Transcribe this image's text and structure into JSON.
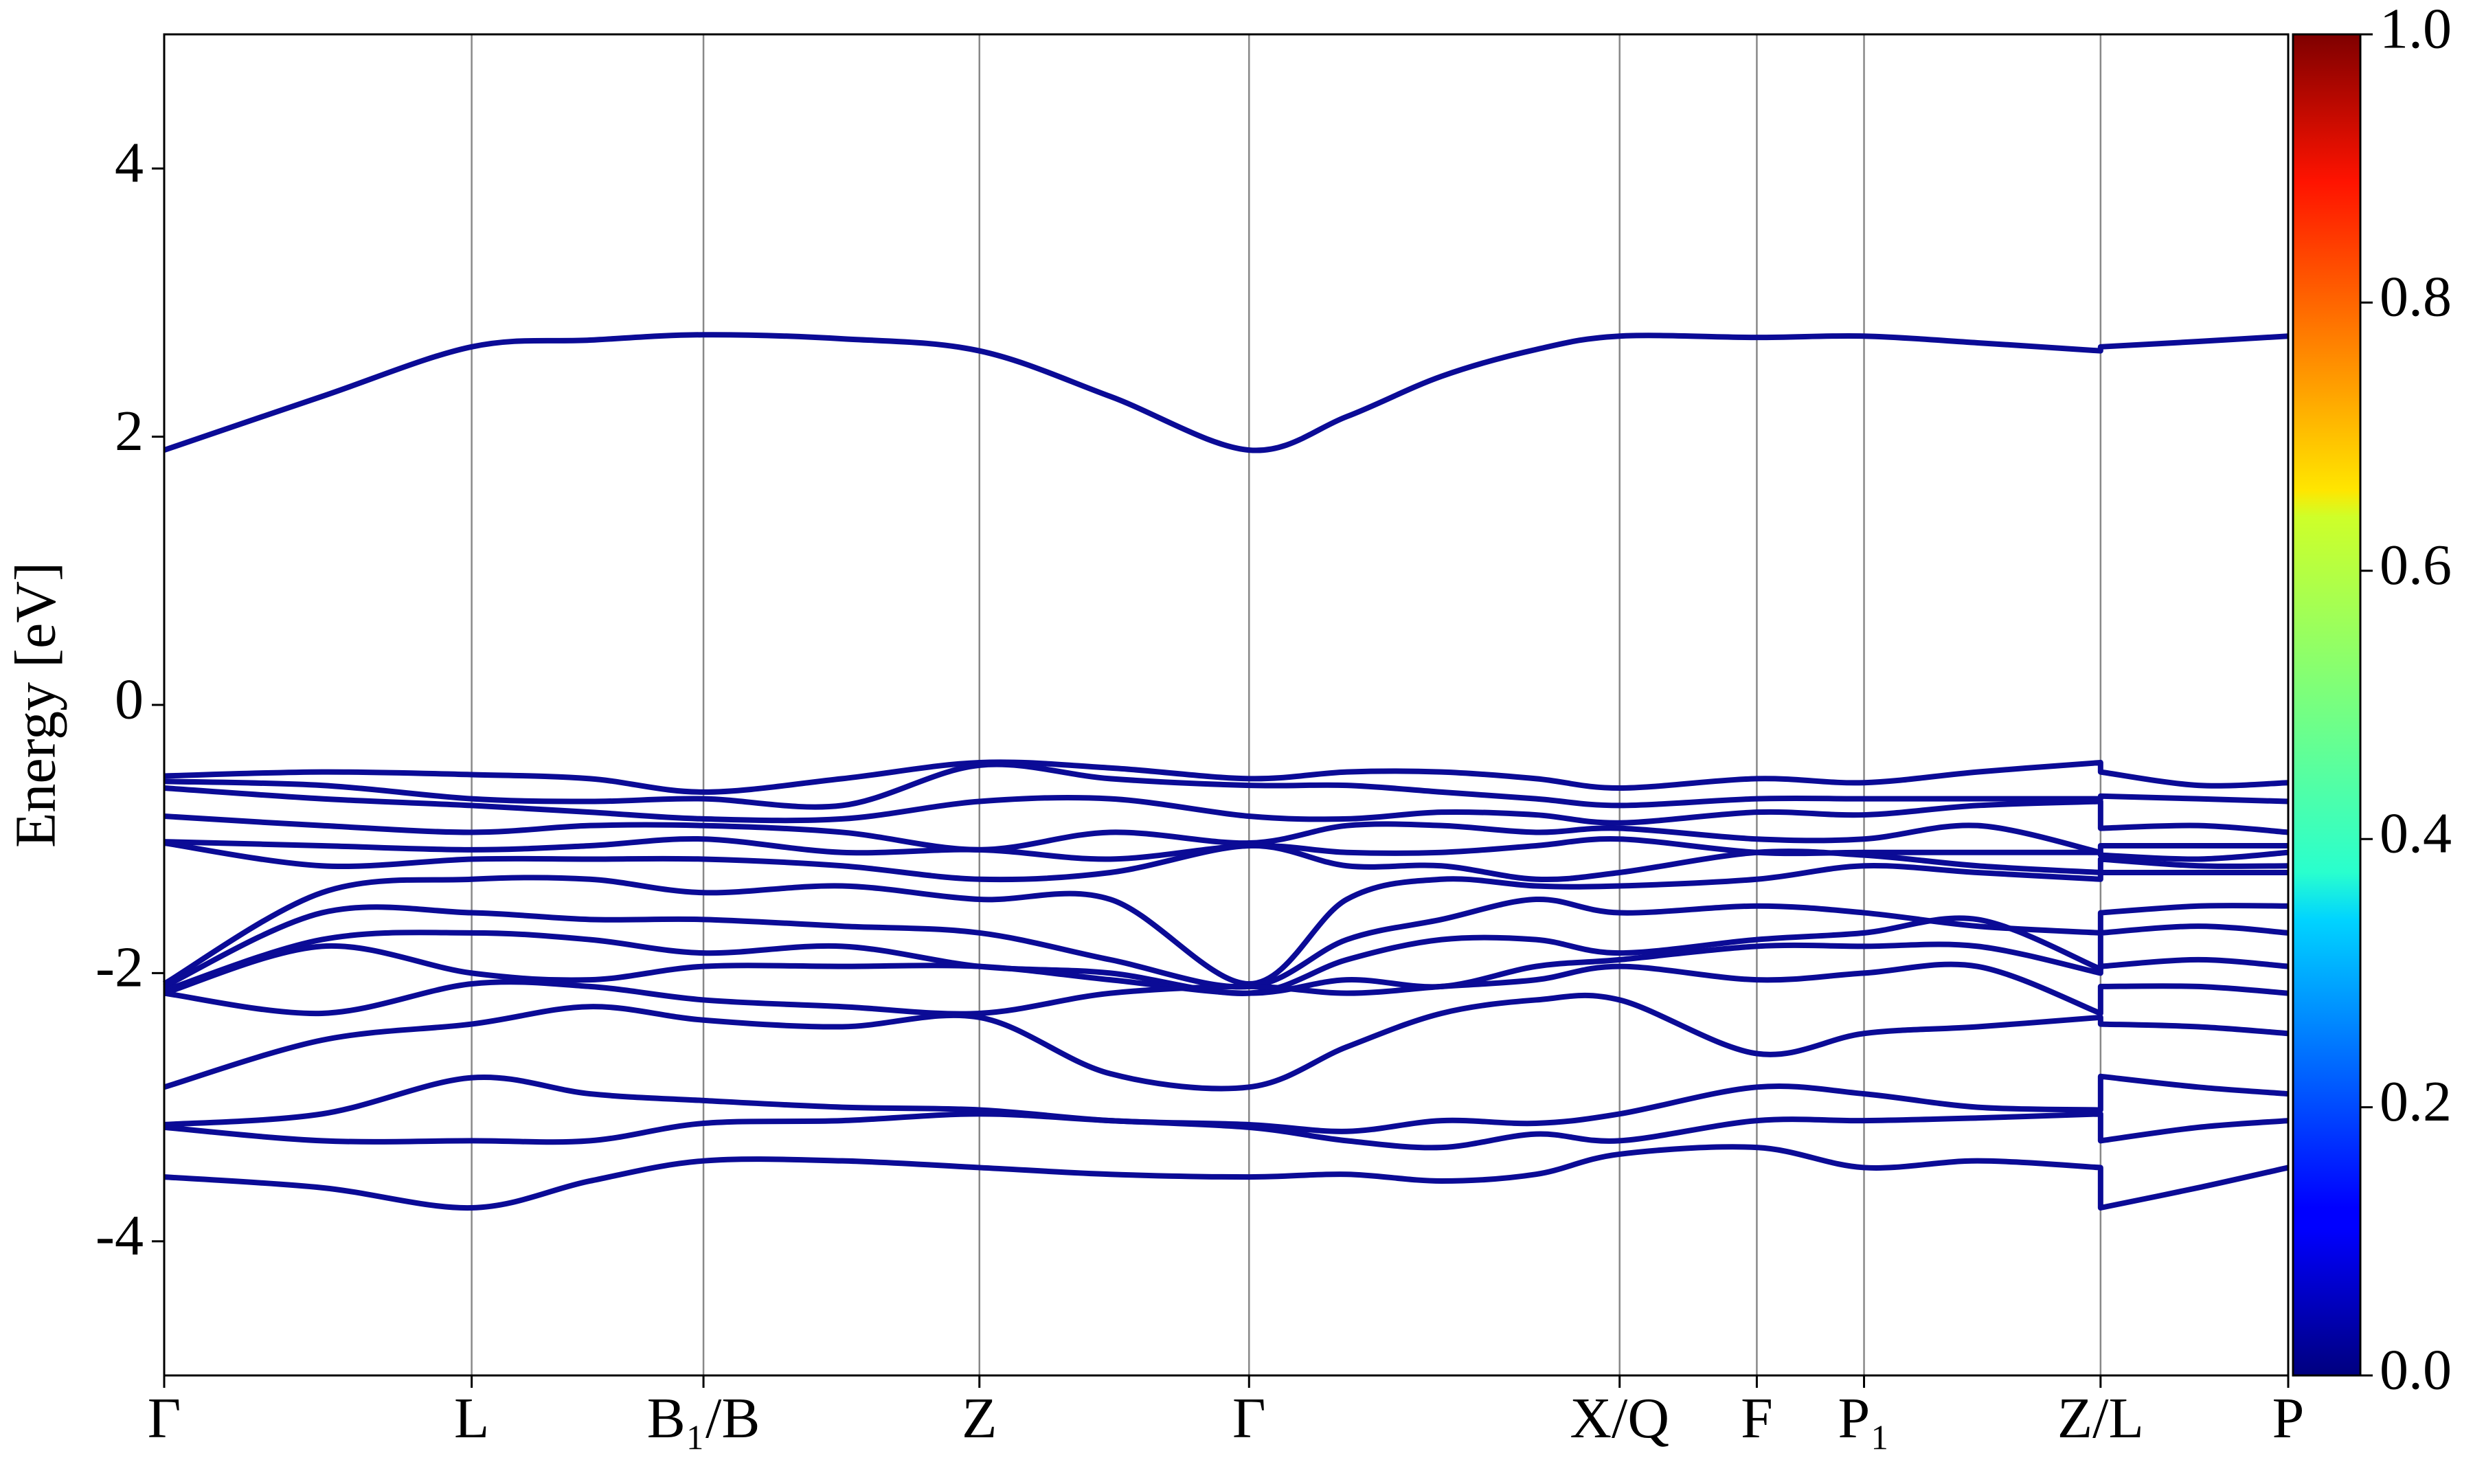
{
  "chart_data": {
    "type": "line",
    "ylabel": "Energy [eV]",
    "ylim": [
      -5,
      5
    ],
    "yticks": [
      -4,
      -2,
      0,
      2,
      4
    ],
    "xlim": [
      0,
      1.347
    ],
    "xticks": [
      {
        "value": 0,
        "label": "Γ"
      },
      {
        "value": 0.195,
        "label": "L"
      },
      {
        "value": 0.342,
        "label": "B₁/B"
      },
      {
        "value": 0.517,
        "label": "Z"
      },
      {
        "value": 0.688,
        "label": "Γ"
      },
      {
        "value": 0.923,
        "label": "X/Q"
      },
      {
        "value": 1.01,
        "label": "F"
      },
      {
        "value": 1.078,
        "label": "P₁"
      },
      {
        "value": 1.228,
        "label": "Z/L"
      },
      {
        "value": 1.347,
        "label": "P"
      }
    ],
    "grid": "x",
    "color": "#0b0b96",
    "x": [
      0,
      0.1,
      0.195,
      0.27,
      0.342,
      0.43,
      0.517,
      0.6,
      0.688,
      0.75,
      0.81,
      0.87,
      0.923,
      1.01,
      1.078,
      1.15,
      1.228,
      1.228,
      1.29,
      1.347
    ],
    "series": [
      {
        "values": [
          1.9,
          2.3,
          2.67,
          2.72,
          2.76,
          2.73,
          2.64,
          2.3,
          1.9,
          2.15,
          2.45,
          2.65,
          2.75,
          2.74,
          2.75,
          2.7,
          2.64,
          2.67,
          2.71,
          2.75
        ]
      },
      {
        "values": [
          -0.53,
          -0.5,
          -0.52,
          -0.55,
          -0.65,
          -0.55,
          -0.43,
          -0.47,
          -0.55,
          -0.5,
          -0.5,
          -0.55,
          -0.62,
          -0.55,
          -0.58,
          -0.5,
          -0.43,
          -0.5,
          -0.6,
          -0.58
        ]
      },
      {
        "values": [
          -0.57,
          -0.6,
          -0.7,
          -0.72,
          -0.7,
          -0.75,
          -0.45,
          -0.55,
          -0.6,
          -0.6,
          -0.65,
          -0.7,
          -0.75,
          -0.7,
          -0.7,
          -0.7,
          -0.7,
          -0.68,
          -0.7,
          -0.72
        ]
      },
      {
        "values": [
          -0.62,
          -0.7,
          -0.75,
          -0.8,
          -0.85,
          -0.85,
          -0.72,
          -0.7,
          -0.83,
          -0.85,
          -0.8,
          -0.82,
          -0.88,
          -0.8,
          -0.82,
          -0.75,
          -0.72,
          -0.92,
          -0.9,
          -0.95
        ]
      },
      {
        "values": [
          -0.83,
          -0.9,
          -0.95,
          -0.9,
          -0.9,
          -0.95,
          -1.08,
          -0.95,
          -1.03,
          -0.9,
          -0.9,
          -0.95,
          -0.92,
          -1.0,
          -1.0,
          -0.9,
          -1.1,
          -1.05,
          -1.05,
          -1.05
        ]
      },
      {
        "values": [
          -1.02,
          -1.05,
          -1.08,
          -1.05,
          -1.0,
          -1.1,
          -1.08,
          -1.15,
          -1.05,
          -1.1,
          -1.1,
          -1.05,
          -1.0,
          -1.1,
          -1.1,
          -1.1,
          -1.1,
          -1.12,
          -1.15,
          -1.1
        ]
      },
      {
        "values": [
          -1.03,
          -1.2,
          -1.15,
          -1.15,
          -1.15,
          -1.2,
          -1.3,
          -1.25,
          -1.05,
          -1.2,
          -1.2,
          -1.3,
          -1.25,
          -1.1,
          -1.12,
          -1.2,
          -1.25,
          -1.15,
          -1.2,
          -1.2
        ]
      },
      {
        "values": [
          -2.08,
          -1.4,
          -1.3,
          -1.3,
          -1.4,
          -1.35,
          -1.45,
          -1.45,
          -2.08,
          -1.45,
          -1.3,
          -1.35,
          -1.35,
          -1.3,
          -1.2,
          -1.25,
          -1.3,
          -1.25,
          -1.25,
          -1.25
        ]
      },
      {
        "values": [
          -2.1,
          -1.55,
          -1.55,
          -1.6,
          -1.6,
          -1.65,
          -1.7,
          -1.9,
          -2.1,
          -1.75,
          -1.6,
          -1.45,
          -1.55,
          -1.5,
          -1.55,
          -1.65,
          -1.7,
          -1.55,
          -1.5,
          -1.5
        ]
      },
      {
        "values": [
          -2.13,
          -1.75,
          -1.7,
          -1.75,
          -1.85,
          -1.8,
          -1.95,
          -2.0,
          -2.15,
          -1.9,
          -1.75,
          -1.75,
          -1.85,
          -1.75,
          -1.7,
          -1.6,
          -1.97,
          -1.7,
          -1.65,
          -1.7
        ]
      },
      {
        "values": [
          -2.15,
          -1.8,
          -2.0,
          -2.05,
          -1.95,
          -1.95,
          -1.95,
          -2.05,
          -2.15,
          -2.05,
          -2.1,
          -1.95,
          -1.9,
          -1.8,
          -1.8,
          -1.8,
          -2.0,
          -1.95,
          -1.9,
          -1.95
        ]
      },
      {
        "values": [
          -2.15,
          -2.3,
          -2.08,
          -2.1,
          -2.2,
          -2.25,
          -2.3,
          -2.15,
          -2.1,
          -2.15,
          -2.1,
          -2.05,
          -1.95,
          -2.05,
          -2.0,
          -1.95,
          -2.3,
          -2.1,
          -2.1,
          -2.15
        ]
      },
      {
        "values": [
          -2.85,
          -2.5,
          -2.38,
          -2.25,
          -2.35,
          -2.4,
          -2.33,
          -2.75,
          -2.85,
          -2.55,
          -2.3,
          -2.2,
          -2.2,
          -2.6,
          -2.45,
          -2.4,
          -2.33,
          -2.38,
          -2.4,
          -2.45
        ]
      },
      {
        "values": [
          -3.13,
          -3.05,
          -2.78,
          -2.9,
          -2.95,
          -3.0,
          -3.02,
          -3.1,
          -3.13,
          -3.18,
          -3.1,
          -3.12,
          -3.05,
          -2.85,
          -2.9,
          -3.0,
          -3.02,
          -2.77,
          -2.85,
          -2.9
        ]
      },
      {
        "values": [
          -3.15,
          -3.25,
          -3.25,
          -3.25,
          -3.12,
          -3.1,
          -3.05,
          -3.1,
          -3.15,
          -3.25,
          -3.3,
          -3.2,
          -3.25,
          -3.1,
          -3.1,
          -3.08,
          -3.05,
          -3.25,
          -3.15,
          -3.1
        ]
      },
      {
        "values": [
          -3.52,
          -3.6,
          -3.75,
          -3.55,
          -3.4,
          -3.4,
          -3.45,
          -3.5,
          -3.52,
          -3.5,
          -3.55,
          -3.5,
          -3.35,
          -3.3,
          -3.45,
          -3.4,
          -3.45,
          -3.75,
          -3.6,
          -3.45
        ]
      }
    ],
    "colorbar": {
      "cmap": "jet",
      "lim": [
        0,
        1
      ],
      "ticks": [
        {
          "value": 0,
          "label": "0.0"
        },
        0.2,
        0.4,
        0.6,
        0.8,
        {
          "value": 1,
          "label": "1.0"
        }
      ]
    }
  }
}
